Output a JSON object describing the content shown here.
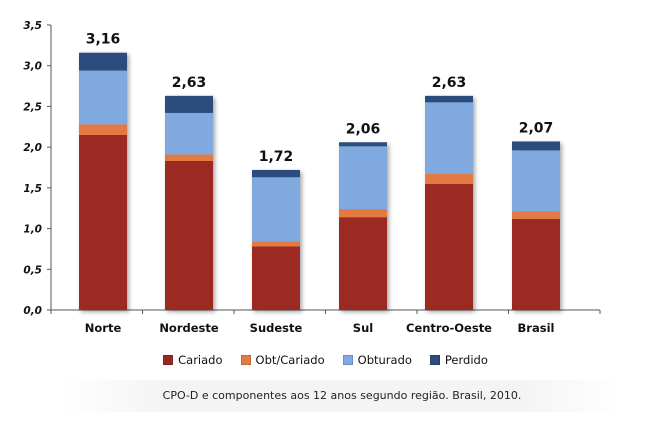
{
  "chart_data": {
    "type": "bar",
    "stacked": true,
    "categories": [
      "Norte",
      "Nordeste",
      "Sudeste",
      "Sul",
      "Centro-Oeste",
      "Brasil"
    ],
    "series": [
      {
        "name": "Cariado",
        "color": "#9c2a24",
        "values": [
          2.15,
          1.83,
          0.78,
          1.14,
          1.55,
          1.12
        ]
      },
      {
        "name": "Obt/Cariado",
        "color": "#e37a43",
        "values": [
          0.13,
          0.08,
          0.06,
          0.1,
          0.12,
          0.09
        ]
      },
      {
        "name": "Obturado",
        "color": "#7fa9df",
        "values": [
          0.66,
          0.51,
          0.79,
          0.77,
          0.88,
          0.75
        ]
      },
      {
        "name": "Perdido",
        "color": "#2c4d7e",
        "values": [
          0.22,
          0.21,
          0.09,
          0.05,
          0.08,
          0.11
        ]
      }
    ],
    "totals": [
      "3,16",
      "2,63",
      "1,72",
      "2,06",
      "2,63",
      "2,07"
    ],
    "yticks": [
      "0,0",
      "0,5",
      "1,0",
      "1,5",
      "2,0",
      "2,5",
      "3,0",
      "3,5"
    ],
    "ylim": [
      0,
      3.5
    ],
    "title": "",
    "xlabel": "",
    "ylabel": "",
    "legend_position": "bottom"
  },
  "caption": "CPO-D e componentes aos 12 anos segundo região. Brasil, 2010."
}
